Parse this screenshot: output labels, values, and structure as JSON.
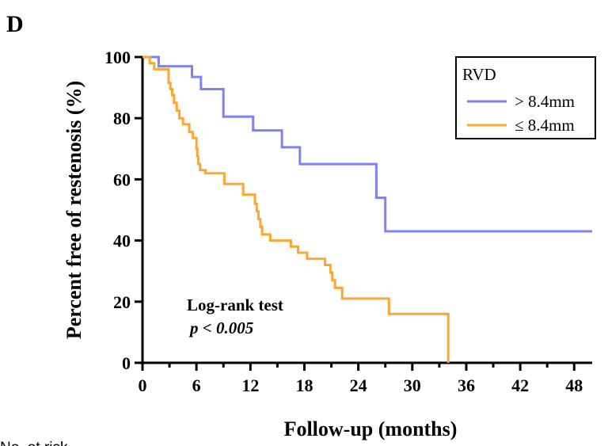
{
  "panel_label": "D",
  "footer_text": "No. at risk",
  "colors": {
    "series_gt": "#8080f8",
    "series_le": "#ffa630",
    "axis": "#000000"
  },
  "chart_data": {
    "type": "line",
    "xlabel": "Follow-up (months)",
    "ylabel": "Percent free of restenosis (%)",
    "xlim": [
      0,
      50
    ],
    "ylim": [
      0,
      100
    ],
    "xticks": [
      0,
      6,
      12,
      18,
      24,
      30,
      36,
      42,
      48
    ],
    "yticks": [
      0,
      20,
      40,
      60,
      80,
      100
    ],
    "grid": false,
    "legend": {
      "title": "RVD",
      "position": "top-right"
    },
    "annotations": [
      "Log-rank test",
      "p < 0.005"
    ],
    "series": [
      {
        "name": "> 8.4mm",
        "step": true,
        "points": [
          [
            0,
            100
          ],
          [
            1.8,
            100
          ],
          [
            1.8,
            97
          ],
          [
            5.5,
            97
          ],
          [
            5.5,
            93.5
          ],
          [
            6.5,
            93.5
          ],
          [
            6.5,
            89.5
          ],
          [
            9,
            89.5
          ],
          [
            9,
            80.5
          ],
          [
            12.3,
            80.5
          ],
          [
            12.3,
            76
          ],
          [
            15.5,
            76
          ],
          [
            15.5,
            70.5
          ],
          [
            17.5,
            70.5
          ],
          [
            17.5,
            65
          ],
          [
            26,
            65
          ],
          [
            26,
            54
          ],
          [
            27,
            54
          ],
          [
            27,
            43
          ],
          [
            50,
            43
          ]
        ]
      },
      {
        "name": "≤ 8.4mm",
        "step": true,
        "points": [
          [
            0,
            100
          ],
          [
            0.8,
            100
          ],
          [
            0.8,
            98
          ],
          [
            1.3,
            98
          ],
          [
            1.3,
            96
          ],
          [
            2.9,
            96
          ],
          [
            2.9,
            91.5
          ],
          [
            3.1,
            91.5
          ],
          [
            3.1,
            89.5
          ],
          [
            3.3,
            89.5
          ],
          [
            3.3,
            87.5
          ],
          [
            3.5,
            87.5
          ],
          [
            3.5,
            85
          ],
          [
            3.8,
            85
          ],
          [
            3.8,
            82.5
          ],
          [
            4.1,
            82.5
          ],
          [
            4.1,
            80
          ],
          [
            4.5,
            80
          ],
          [
            4.5,
            78
          ],
          [
            5.2,
            78
          ],
          [
            5.2,
            75.5
          ],
          [
            5.6,
            75.5
          ],
          [
            5.6,
            73.5
          ],
          [
            6.0,
            73.5
          ],
          [
            6.0,
            70
          ],
          [
            6.1,
            70
          ],
          [
            6.1,
            67.5
          ],
          [
            6.2,
            67.5
          ],
          [
            6.2,
            65
          ],
          [
            6.4,
            65
          ],
          [
            6.4,
            63
          ],
          [
            7,
            63
          ],
          [
            7,
            62
          ],
          [
            9.1,
            62
          ],
          [
            9.1,
            58.5
          ],
          [
            11.2,
            58.5
          ],
          [
            11.2,
            55
          ],
          [
            12.5,
            55
          ],
          [
            12.5,
            52
          ],
          [
            12.7,
            52
          ],
          [
            12.7,
            49.5
          ],
          [
            12.9,
            49.5
          ],
          [
            12.9,
            47
          ],
          [
            13.1,
            47
          ],
          [
            13.1,
            44.5
          ],
          [
            13.3,
            44.5
          ],
          [
            13.3,
            42
          ],
          [
            14.2,
            42
          ],
          [
            14.2,
            40
          ],
          [
            16.5,
            40
          ],
          [
            16.5,
            38
          ],
          [
            17.3,
            38
          ],
          [
            17.3,
            36
          ],
          [
            18.3,
            36
          ],
          [
            18.3,
            34
          ],
          [
            20.3,
            34
          ],
          [
            20.3,
            32
          ],
          [
            20.9,
            32
          ],
          [
            20.9,
            29.5
          ],
          [
            21.1,
            29.5
          ],
          [
            21.1,
            27
          ],
          [
            21.4,
            27
          ],
          [
            21.4,
            24.5
          ],
          [
            22.2,
            24.5
          ],
          [
            22.2,
            21
          ],
          [
            27.4,
            21
          ],
          [
            27.4,
            16
          ],
          [
            34,
            16
          ],
          [
            34,
            0
          ]
        ]
      }
    ]
  }
}
